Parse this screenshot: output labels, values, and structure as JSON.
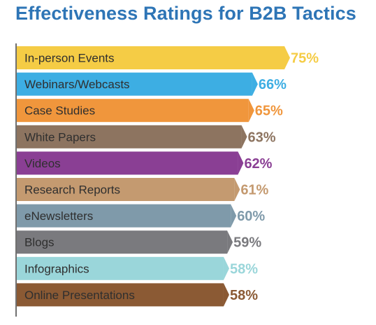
{
  "page": {
    "title": "Effectiveness Ratings for B2B Tactics",
    "title_color": "#2e75b6"
  },
  "chart_data": {
    "type": "bar",
    "orientation": "horizontal",
    "title": "Effectiveness Ratings for B2B Tactics",
    "xlabel": "",
    "ylabel": "",
    "xlim": [
      0,
      75
    ],
    "grid": false,
    "legend": "none",
    "categories": [
      "In-person Events",
      "Webinars/Webcasts",
      "Case Studies",
      "White Papers",
      "Videos",
      "Research Reports",
      "eNewsletters",
      "Blogs",
      "Infographics",
      "Online Presentations"
    ],
    "values": [
      75,
      66,
      65,
      63,
      62,
      61,
      60,
      59,
      58,
      58
    ],
    "value_labels": [
      "75%",
      "66%",
      "65%",
      "63%",
      "62%",
      "61%",
      "60%",
      "59%",
      "58%",
      "58%"
    ],
    "colors": [
      "#f5cc45",
      "#3daee3",
      "#f0963c",
      "#8d7460",
      "#8a3f94",
      "#c49a70",
      "#7f9aaa",
      "#7a7a7e",
      "#9ad6da",
      "#8b5a34"
    ],
    "label_text_color": "#2f2f2f",
    "axis_color": "#222222"
  }
}
